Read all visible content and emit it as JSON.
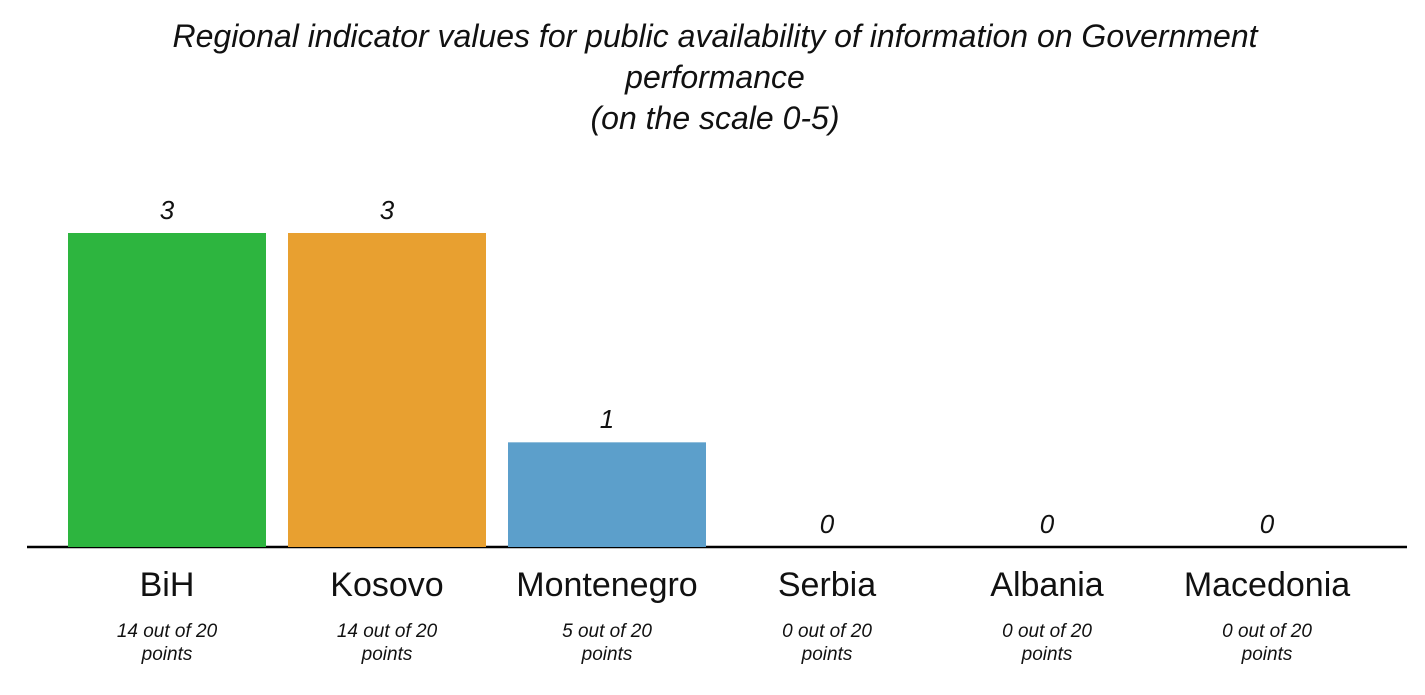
{
  "chart_data": {
    "type": "bar",
    "title": "Regional indicator values for public availability of information on Government performance",
    "subtitle": "(on the scale 0-5)",
    "categories": [
      "BiH",
      "Kosovo",
      "Montenegro",
      "Serbia",
      "Albania",
      "Macedonia"
    ],
    "category_notes": [
      "14 out of 20 points",
      "14 out of 20 points",
      "5 out of 20 points",
      "0 out of 20 points",
      "0 out of 20 points",
      "0 out of 20 points"
    ],
    "values": [
      3,
      3,
      1,
      0,
      0,
      0
    ],
    "colors": [
      "#2db53f",
      "#e8a030",
      "#5c9fcb",
      "#5c9fcb",
      "#5c9fcb",
      "#5c9fcb"
    ],
    "ylim": [
      0,
      3
    ]
  }
}
